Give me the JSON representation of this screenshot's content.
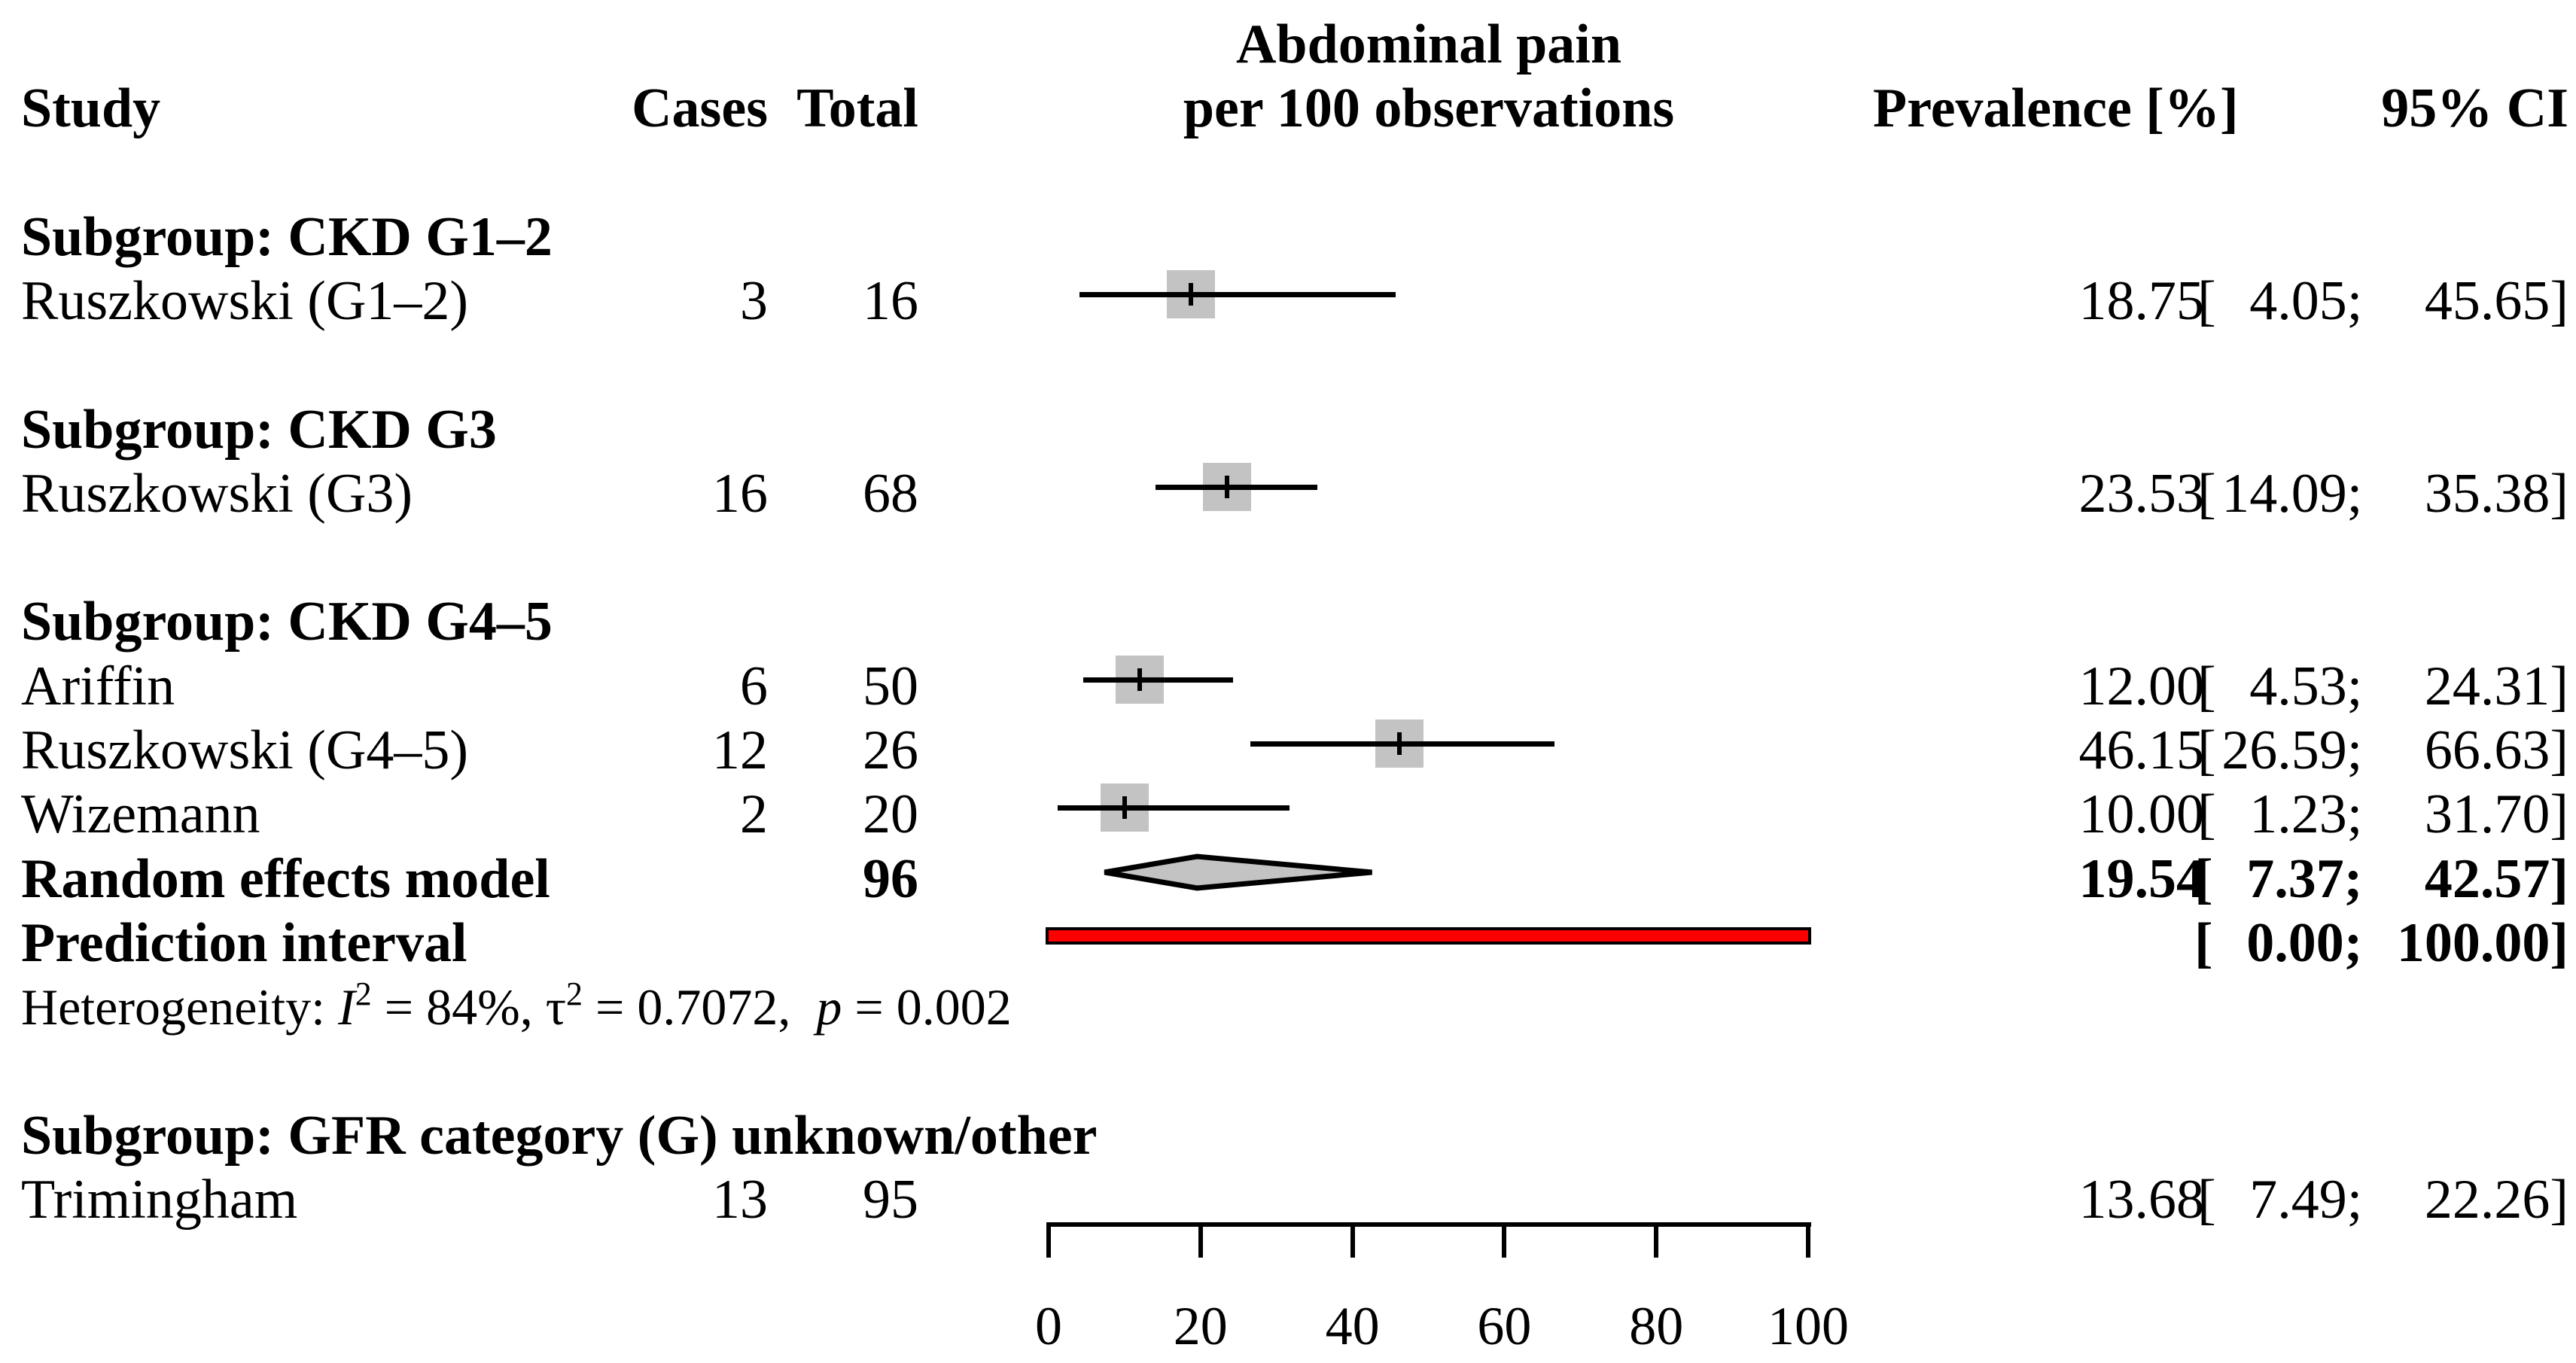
{
  "columns": {
    "study": "Study",
    "cases": "Cases",
    "total": "Total",
    "prevalence": "Prevalence [%]",
    "ci": "95% CI"
  },
  "plot_title": {
    "line1": "Abdominal pain",
    "line2": "per 100 observations"
  },
  "ci_format": {
    "open": "[",
    "sep": ";  ",
    "close": "]"
  },
  "chart_data": {
    "type": "forest",
    "title": "Abdominal pain per 100 observations",
    "xlim": [
      0,
      100
    ],
    "ticks": [
      0,
      20,
      40,
      60,
      80,
      100
    ],
    "groups": [
      {
        "header": "Subgroup: CKD G1–2",
        "rows": [
          {
            "study": "Ruszkowski (G1–2)",
            "cases": "3",
            "total": "16",
            "est": 18.75,
            "lo": 4.05,
            "hi": 45.65,
            "est_str": "18.75",
            "lo_str": "4.05",
            "hi_str": "45.65"
          }
        ]
      },
      {
        "header": "Subgroup: CKD G3",
        "rows": [
          {
            "study": "Ruszkowski (G3)",
            "cases": "16",
            "total": "68",
            "est": 23.53,
            "lo": 14.09,
            "hi": 35.38,
            "est_str": "23.53",
            "lo_str": "14.09",
            "hi_str": "35.38"
          }
        ]
      },
      {
        "header": "Subgroup: CKD G4–5",
        "rows": [
          {
            "study": "Ariffin",
            "cases": "6",
            "total": "50",
            "est": 12.0,
            "lo": 4.53,
            "hi": 24.31,
            "est_str": "12.00",
            "lo_str": "4.53",
            "hi_str": "24.31"
          },
          {
            "study": "Ruszkowski (G4–5)",
            "cases": "12",
            "total": "26",
            "est": 46.15,
            "lo": 26.59,
            "hi": 66.63,
            "est_str": "46.15",
            "lo_str": "26.59",
            "hi_str": "66.63"
          },
          {
            "study": "Wizemann",
            "cases": "2",
            "total": "20",
            "est": 10.0,
            "lo": 1.23,
            "hi": 31.7,
            "est_str": "10.00",
            "lo_str": "1.23",
            "hi_str": "31.70"
          }
        ],
        "summary": {
          "study": "Random effects model",
          "total": "96",
          "est": 19.54,
          "lo": 7.37,
          "hi": 42.57,
          "est_str": "19.54",
          "lo_str": "7.37",
          "hi_str": "42.57"
        },
        "prediction": {
          "study": "Prediction interval",
          "lo": 0.0,
          "hi": 100.0,
          "lo_str": "0.00",
          "hi_str": "100.00"
        },
        "heterogeneity": {
          "prefix": "Heterogeneity: ",
          "i_sym": "I",
          "i_exp": "2",
          "seg1": " = 84%, ",
          "tau_sym": "τ",
          "tau_exp": "2",
          "seg2": " = 0.7072,  ",
          "p_sym": "p",
          "seg3": " = 0.002",
          "i2": "84%",
          "tau2": "0.7072",
          "p": "0.002"
        }
      },
      {
        "header": "Subgroup: GFR category (G) unknown/other",
        "rows": [
          {
            "study": "Trimingham",
            "cases": "13",
            "total": "95",
            "est": 13.68,
            "lo": 7.49,
            "hi": 22.26,
            "est_str": "13.68",
            "lo_str": "7.49",
            "hi_str": "22.26",
            "no_marker": true
          }
        ]
      }
    ]
  }
}
